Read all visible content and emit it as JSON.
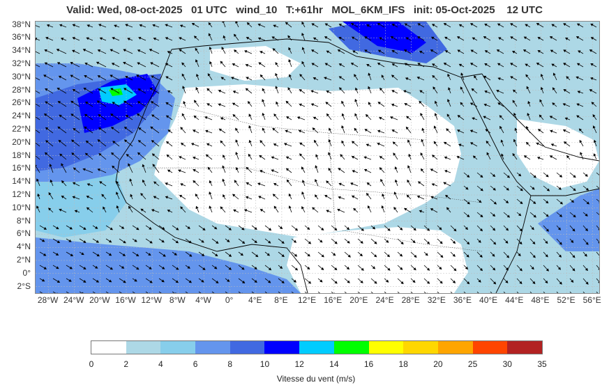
{
  "header": {
    "title": "Valid: Wed, 08-oct-2025   01 UTC   wind_10   T:+61hr   MOL_6KM_IFS   init: 05-Oct-2025    12 UTC"
  },
  "map": {
    "lat_labels": [
      "38°N",
      "36°N",
      "34°N",
      "32°N",
      "30°N",
      "28°N",
      "26°N",
      "24°N",
      "22°N",
      "20°N",
      "18°N",
      "16°N",
      "14°N",
      "12°N",
      "10°N",
      "8°N",
      "6°N",
      "4°N",
      "2°N",
      "0°",
      "2°S"
    ],
    "lon_labels": [
      "28°W",
      "24°W",
      "20°W",
      "16°W",
      "12°W",
      "8°W",
      "4°W",
      "0°",
      "4°E",
      "8°E",
      "12°E",
      "16°E",
      "20°E",
      "24°E",
      "28°E",
      "32°E",
      "36°E",
      "40°E",
      "44°E",
      "48°E",
      "52°E",
      "56°E"
    ],
    "lat_range": [
      -3,
      38.5
    ],
    "lon_range": [
      -30,
      57
    ],
    "colors": {
      "land": "#ffffff",
      "band_2_4": "#add8e6",
      "band_4_6": "#87ceeb",
      "band_6_8": "#6495ed",
      "band_8_10": "#4169e1",
      "band_10_12": "#0000ff",
      "band_12_14": "#00ccff",
      "band_14_16": "#00ff00",
      "coast": "#000000",
      "arrow": "#000000"
    }
  },
  "legend": {
    "title": "Vitesse du vent (m/s)",
    "ticks": [
      "0",
      "2",
      "4",
      "6",
      "8",
      "10",
      "12",
      "14",
      "16",
      "18",
      "20",
      "25",
      "30",
      "35"
    ],
    "colors": [
      "#ffffff",
      "#add8e6",
      "#87ceeb",
      "#6495ed",
      "#4169e1",
      "#0000ff",
      "#00ccff",
      "#00ff00",
      "#ffff00",
      "#ffd700",
      "#ffa500",
      "#ff4500",
      "#b22222"
    ]
  }
}
